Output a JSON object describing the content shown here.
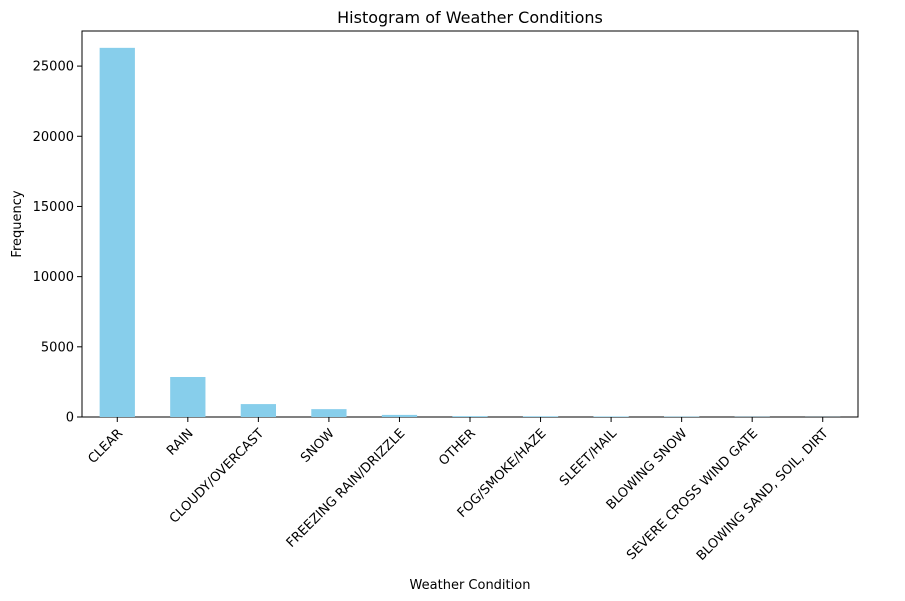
{
  "chart_data": {
    "type": "bar",
    "title": "Histogram of Weather Conditions",
    "xlabel": "Weather Condition",
    "ylabel": "Frequency",
    "categories": [
      "CLEAR",
      "RAIN",
      "CLOUDY/OVERCAST",
      "SNOW",
      "FREEZING RAIN/DRIZZLE",
      "OTHER",
      "FOG/SMOKE/HAZE",
      "SLEET/HAIL",
      "BLOWING SNOW",
      "SEVERE CROSS WIND GATE",
      "BLOWING SAND, SOIL, DIRT"
    ],
    "values": [
      26300,
      2850,
      920,
      560,
      150,
      60,
      50,
      40,
      30,
      20,
      10
    ],
    "ylim": [
      0,
      27500
    ],
    "yticks": [
      0,
      5000,
      10000,
      15000,
      20000,
      25000
    ],
    "bar_color": "#87ceeb",
    "grid": false,
    "legend": "none"
  }
}
